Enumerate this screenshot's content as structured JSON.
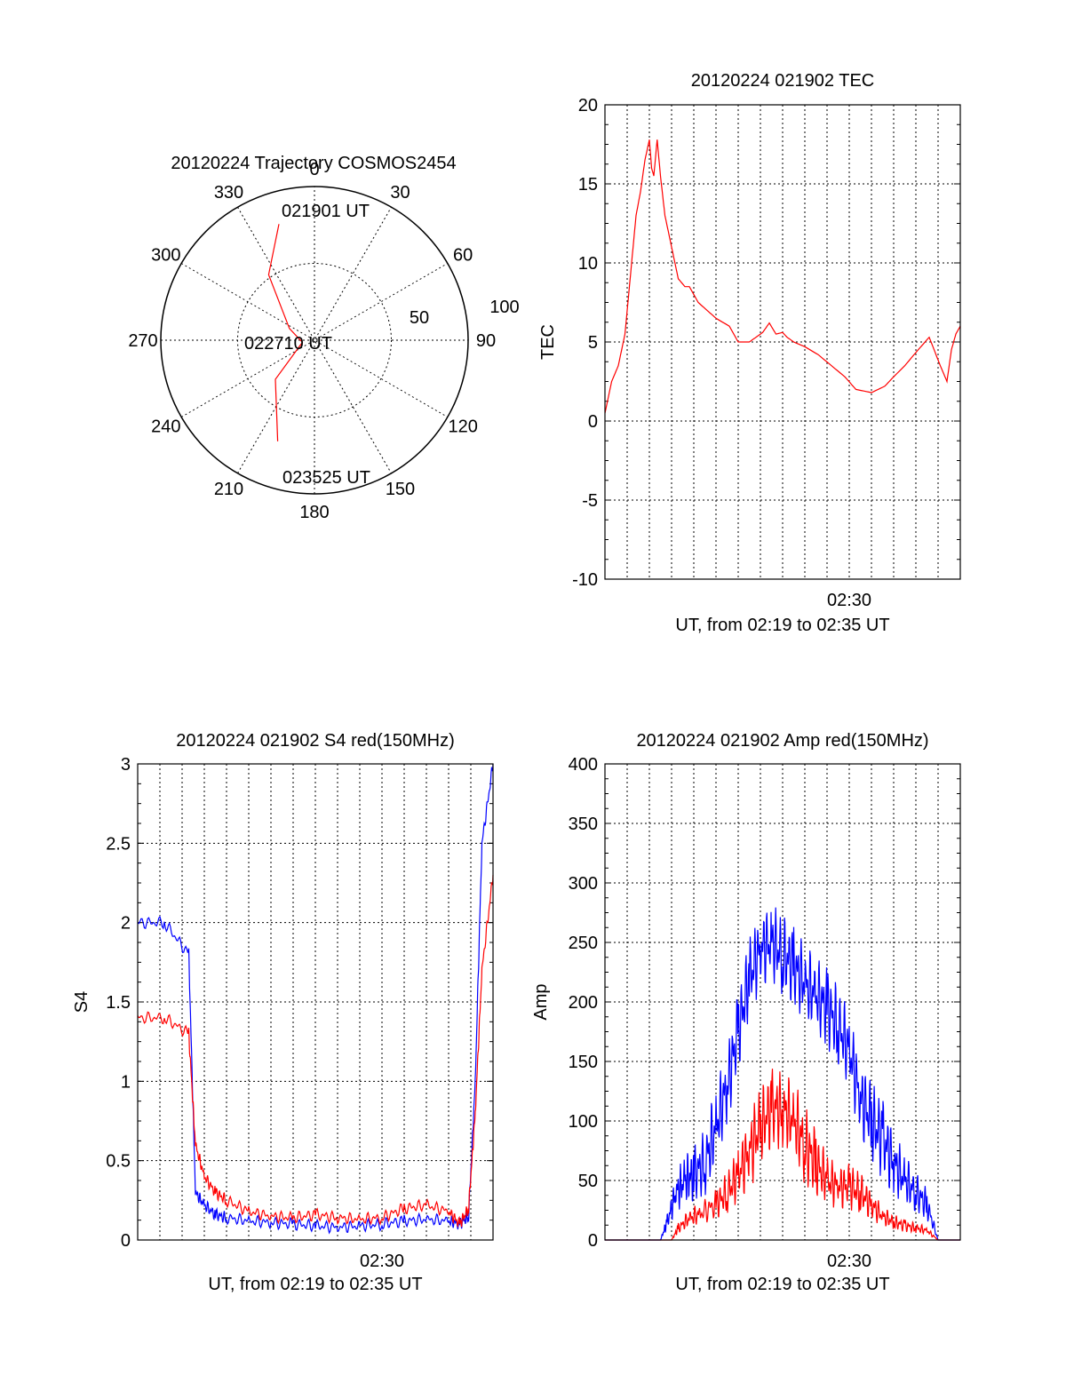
{
  "chart_data": [
    {
      "id": "polar",
      "type": "polar",
      "title": "20120224 Trajectory COSMOS2454",
      "angle_labels": [
        "0",
        "30",
        "60",
        "90",
        "120",
        "150",
        "180",
        "210",
        "240",
        "270",
        "300",
        "330"
      ],
      "radial_label_inner": "50",
      "radial_label_outer": "100",
      "angle_direction": "clockwise from top",
      "series": [
        {
          "color": "#ff0000",
          "points": [
            [
              343,
              79
            ],
            [
              325,
              52
            ],
            [
              295,
              18
            ],
            [
              260,
              8
            ],
            [
              225,
              36
            ],
            [
              200,
              70
            ]
          ]
        }
      ],
      "annotations": [
        "021901 UT",
        "022710 UT",
        "023525 UT"
      ]
    },
    {
      "id": "tec",
      "type": "line",
      "title": "20120224 021902 TEC",
      "xlabel": "UT, from 02:19 to 02:35 UT",
      "ylabel": "TEC",
      "xlim": [
        0,
        16
      ],
      "ylim": [
        -10,
        20
      ],
      "yticks": [
        "-10",
        "-5",
        "0",
        "5",
        "10",
        "15",
        "20"
      ],
      "xtick_labels": [
        {
          "x": 11,
          "label": "02:30"
        }
      ],
      "grid": true,
      "series": [
        {
          "color": "#ff0000",
          "x": [
            0,
            0.3,
            0.6,
            0.9,
            1.2,
            1.4,
            1.6,
            1.8,
            2.0,
            2.1,
            2.2,
            2.35,
            2.5,
            2.7,
            3.0,
            3.3,
            3.6,
            3.8,
            4.2,
            4.6,
            5.0,
            5.6,
            6,
            6.5,
            6.8,
            7.1,
            7.4,
            7.7,
            8.0,
            8.2,
            8.5,
            9.0,
            9.6,
            10.2,
            10.8,
            11.3,
            12,
            12.6,
            13,
            13.5,
            14.1,
            14.6,
            15.1,
            15.4,
            15.6,
            15.8,
            16
          ],
          "y": [
            0.5,
            2.5,
            3.5,
            5.5,
            10,
            13,
            14.5,
            16.5,
            17.8,
            16,
            15.5,
            17.8,
            15.5,
            13,
            11,
            9,
            8.5,
            8.5,
            7.5,
            7,
            6.5,
            6,
            5,
            5,
            5.3,
            5.6,
            6.2,
            5.5,
            5.6,
            5.3,
            5,
            4.7,
            4.2,
            3.5,
            2.8,
            2,
            1.8,
            2.2,
            2.8,
            3.5,
            4.5,
            5.3,
            3.5,
            2.5,
            4.5,
            5.5,
            6
          ]
        }
      ]
    },
    {
      "id": "s4",
      "type": "line",
      "title": "20120224 021902 S4 red(150MHz)",
      "xlabel": "UT, from 02:19 to 02:35 UT",
      "ylabel": "S4",
      "xlim": [
        0,
        16
      ],
      "ylim": [
        0,
        3
      ],
      "yticks": [
        "0",
        "0.5",
        "1",
        "1.5",
        "2",
        "2.5",
        "3"
      ],
      "xtick_labels": [
        {
          "x": 11,
          "label": "02:30"
        }
      ],
      "grid": true,
      "series": [
        {
          "color": "#0000ff",
          "x": [
            0,
            1.2,
            2.3,
            2.6,
            3,
            3.5,
            4,
            5,
            6,
            7,
            8,
            9,
            10,
            11,
            12,
            13,
            14,
            14.5,
            14.9,
            15.2,
            15.5,
            16
          ],
          "y": [
            2,
            2,
            1.8,
            0.3,
            0.22,
            0.16,
            0.14,
            0.12,
            0.11,
            0.1,
            0.09,
            0.08,
            0.09,
            0.1,
            0.12,
            0.13,
            0.12,
            0.1,
            0.15,
            1,
            2.5,
            3
          ]
        },
        {
          "color": "#ff0000",
          "x": [
            0,
            1.2,
            2.3,
            2.6,
            3,
            3.5,
            4,
            5,
            6,
            7,
            8,
            9,
            10,
            11,
            12,
            13,
            14,
            14.5,
            14.9,
            15.2,
            15.5,
            16
          ],
          "y": [
            1.4,
            1.4,
            1.3,
            0.6,
            0.4,
            0.3,
            0.25,
            0.18,
            0.15,
            0.14,
            0.16,
            0.14,
            0.13,
            0.14,
            0.2,
            0.22,
            0.18,
            0.1,
            0.2,
            0.8,
            1.7,
            2.3
          ]
        }
      ]
    },
    {
      "id": "amp",
      "type": "line",
      "title": "20120224 021902 Amp red(150MHz)",
      "xlabel": "UT, from 02:19 to 02:35 UT",
      "ylabel": "Amp",
      "xlim": [
        0,
        16
      ],
      "ylim": [
        0,
        400
      ],
      "yticks": [
        "0",
        "50",
        "100",
        "150",
        "200",
        "250",
        "300",
        "350",
        "400"
      ],
      "xtick_labels": [
        {
          "x": 11,
          "label": "02:30"
        }
      ],
      "grid": true,
      "series": [
        {
          "color": "#0000ff",
          "x": [
            0,
            2.5,
            2.8,
            3.2,
            3.6,
            4,
            4.5,
            5,
            5.5,
            6,
            6.5,
            7,
            7.5,
            8,
            8.5,
            9,
            9.5,
            10,
            10.5,
            11,
            11.5,
            12,
            12.5,
            13,
            13.5,
            14,
            14.5,
            15,
            16
          ],
          "y": [
            0,
            0,
            15,
            40,
            50,
            55,
            65,
            95,
            130,
            175,
            220,
            245,
            250,
            240,
            230,
            215,
            205,
            195,
            180,
            160,
            120,
            100,
            85,
            65,
            50,
            40,
            30,
            0,
            0
          ]
        },
        {
          "color": "#ff0000",
          "x": [
            0,
            3,
            3.3,
            3.8,
            4.3,
            5,
            5.5,
            6,
            6.5,
            7,
            7.5,
            8,
            8.5,
            9,
            9.5,
            10,
            10.5,
            11,
            11.5,
            12,
            12.5,
            13,
            13.5,
            14,
            14.5,
            15,
            16
          ],
          "y": [
            0,
            0,
            10,
            18,
            22,
            30,
            40,
            55,
            75,
            95,
            110,
            110,
            100,
            80,
            65,
            50,
            45,
            45,
            40,
            30,
            20,
            15,
            12,
            10,
            8,
            0,
            0
          ]
        }
      ]
    }
  ]
}
